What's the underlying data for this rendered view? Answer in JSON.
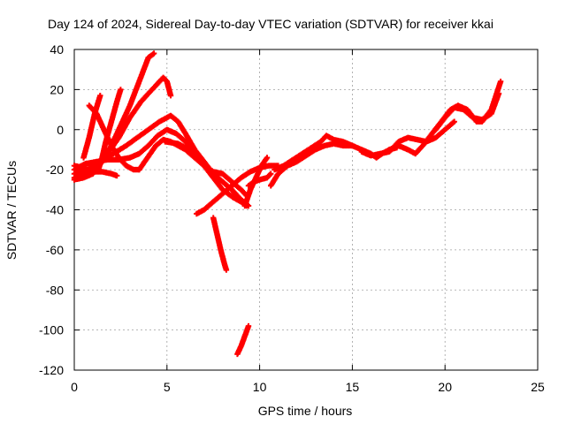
{
  "chart_data": {
    "type": "scatter",
    "title": "Day 124 of 2024, Sidereal Day-to-day VTEC variation (SDTVAR) for receiver kkai",
    "xlabel": "GPS time / hours",
    "ylabel": "SDTVAR / TECUs",
    "xlim": [
      0,
      25
    ],
    "ylim": [
      -120,
      40
    ],
    "xticks": [
      0,
      5,
      10,
      15,
      20,
      25
    ],
    "yticks": [
      -120,
      -100,
      -80,
      -60,
      -40,
      -20,
      0,
      20,
      40
    ],
    "grid": true,
    "marker": "plus",
    "color": "#ff0000",
    "series": [
      {
        "points": [
          [
            0.0,
            -25
          ],
          [
            0.5,
            -24
          ],
          [
            1.0,
            -22
          ],
          [
            1.5,
            -16
          ],
          [
            2.0,
            -8
          ],
          [
            2.5,
            2
          ],
          [
            3.0,
            12
          ],
          [
            3.5,
            24
          ],
          [
            4.0,
            36
          ],
          [
            4.3,
            38
          ]
        ]
      },
      {
        "points": [
          [
            0.0,
            -24
          ],
          [
            0.6,
            -22
          ],
          [
            1.2,
            -18
          ],
          [
            1.8,
            -12
          ],
          [
            2.4,
            -4
          ],
          [
            3.0,
            6
          ],
          [
            3.6,
            14
          ],
          [
            4.2,
            20
          ],
          [
            4.8,
            26
          ],
          [
            5.0,
            24
          ],
          [
            5.2,
            17
          ]
        ]
      },
      {
        "points": [
          [
            0.0,
            -22
          ],
          [
            0.7,
            -20
          ],
          [
            1.4,
            -16
          ],
          [
            2.1,
            -12
          ],
          [
            2.8,
            -8
          ],
          [
            3.4,
            -4
          ],
          [
            4.0,
            0
          ],
          [
            4.6,
            4
          ],
          [
            5.2,
            7
          ],
          [
            5.6,
            4
          ],
          [
            6.0,
            -2
          ],
          [
            6.5,
            -10
          ],
          [
            7.0,
            -16
          ],
          [
            7.5,
            -22
          ],
          [
            8.0,
            -26
          ],
          [
            8.5,
            -30
          ],
          [
            9.0,
            -36
          ],
          [
            9.3,
            -38
          ]
        ]
      },
      {
        "points": [
          [
            0.0,
            -20
          ],
          [
            0.6,
            -17
          ],
          [
            1.2,
            -16
          ],
          [
            1.8,
            -15
          ],
          [
            2.4,
            -15
          ],
          [
            3.0,
            -14
          ],
          [
            3.5,
            -12
          ],
          [
            4.0,
            -8
          ],
          [
            4.5,
            -3
          ],
          [
            5.0,
            0
          ],
          [
            5.5,
            -2
          ],
          [
            6.0,
            -6
          ],
          [
            6.5,
            -12
          ],
          [
            7.0,
            -18
          ],
          [
            7.5,
            -24
          ],
          [
            8.0,
            -30
          ],
          [
            8.6,
            -34
          ],
          [
            9.0,
            -36
          ]
        ]
      },
      {
        "points": [
          [
            0.0,
            -18
          ],
          [
            0.5,
            -19
          ],
          [
            1.0,
            -21
          ],
          [
            1.5,
            -21
          ],
          [
            2.0,
            -22
          ],
          [
            2.3,
            -23
          ]
        ]
      },
      {
        "points": [
          [
            0.5,
            -14
          ],
          [
            0.8,
            -4
          ],
          [
            1.1,
            8
          ],
          [
            1.4,
            17
          ]
        ]
      },
      {
        "points": [
          [
            0.8,
            12
          ],
          [
            1.2,
            8
          ],
          [
            1.6,
            0
          ],
          [
            2.0,
            -8
          ],
          [
            2.4,
            -14
          ],
          [
            2.8,
            -18
          ],
          [
            3.2,
            -20
          ],
          [
            3.5,
            -20
          ]
        ]
      },
      {
        "points": [
          [
            1.3,
            -20
          ],
          [
            1.5,
            -14
          ],
          [
            1.7,
            -6
          ],
          [
            2.0,
            4
          ],
          [
            2.3,
            14
          ],
          [
            2.5,
            20
          ]
        ]
      },
      {
        "points": [
          [
            3.5,
            -20
          ],
          [
            3.8,
            -16
          ],
          [
            4.1,
            -12
          ],
          [
            4.4,
            -8
          ],
          [
            4.8,
            -5
          ],
          [
            5.2,
            -6
          ],
          [
            5.6,
            -8
          ],
          [
            6.0,
            -10
          ],
          [
            6.5,
            -14
          ],
          [
            7.0,
            -18
          ],
          [
            7.5,
            -21
          ],
          [
            8.0,
            -22
          ],
          [
            8.5,
            -26
          ],
          [
            9.0,
            -30
          ],
          [
            9.3,
            -33
          ]
        ]
      },
      {
        "points": [
          [
            4.9,
            -6
          ],
          [
            5.6,
            -7
          ],
          [
            6.2,
            -10
          ],
          [
            6.8,
            -16
          ],
          [
            7.4,
            -22
          ],
          [
            8.0,
            -26
          ],
          [
            8.5,
            -30
          ],
          [
            9.0,
            -35
          ],
          [
            9.4,
            -38
          ]
        ]
      },
      {
        "points": [
          [
            6.6,
            -42
          ],
          [
            7.0,
            -40
          ],
          [
            7.5,
            -36
          ],
          [
            8.0,
            -32
          ],
          [
            8.5,
            -28
          ],
          [
            9.0,
            -24
          ],
          [
            9.5,
            -21
          ],
          [
            10.0,
            -19
          ],
          [
            10.5,
            -18
          ],
          [
            11.0,
            -18
          ]
        ]
      },
      {
        "points": [
          [
            7.5,
            -44
          ],
          [
            7.7,
            -52
          ],
          [
            7.9,
            -60
          ],
          [
            8.1,
            -67
          ],
          [
            8.2,
            -70
          ]
        ]
      },
      {
        "points": [
          [
            8.8,
            -112
          ],
          [
            9.0,
            -108
          ],
          [
            9.2,
            -103
          ],
          [
            9.4,
            -98
          ]
        ]
      },
      {
        "points": [
          [
            9.2,
            -38
          ],
          [
            9.5,
            -30
          ],
          [
            9.8,
            -24
          ],
          [
            10.1,
            -18
          ],
          [
            10.4,
            -14
          ]
        ]
      },
      {
        "points": [
          [
            9.4,
            -28
          ],
          [
            9.7,
            -26
          ],
          [
            10.0,
            -25
          ],
          [
            10.4,
            -24
          ],
          [
            10.6,
            -22
          ]
        ]
      },
      {
        "points": [
          [
            10.6,
            -28
          ],
          [
            11.0,
            -22
          ],
          [
            11.5,
            -18
          ],
          [
            12.0,
            -16
          ],
          [
            12.5,
            -13
          ],
          [
            13.0,
            -10
          ],
          [
            13.5,
            -8
          ],
          [
            14.0,
            -7
          ],
          [
            14.5,
            -8
          ],
          [
            15.0,
            -8
          ]
        ]
      },
      {
        "points": [
          [
            10.8,
            -20
          ],
          [
            11.3,
            -18
          ],
          [
            11.8,
            -15
          ],
          [
            12.3,
            -12
          ],
          [
            12.8,
            -9
          ],
          [
            13.3,
            -6
          ],
          [
            13.6,
            -3
          ],
          [
            14.0,
            -5
          ],
          [
            14.5,
            -6
          ],
          [
            15.0,
            -8
          ]
        ]
      },
      {
        "points": [
          [
            15.0,
            -8
          ],
          [
            15.5,
            -10
          ],
          [
            16.0,
            -12
          ],
          [
            16.3,
            -14
          ],
          [
            16.6,
            -12
          ],
          [
            17.0,
            -10
          ],
          [
            17.4,
            -9
          ]
        ]
      },
      {
        "points": [
          [
            15.5,
            -11
          ],
          [
            16.0,
            -13
          ],
          [
            16.5,
            -12
          ],
          [
            17.0,
            -11
          ],
          [
            17.5,
            -6
          ],
          [
            18.0,
            -4
          ],
          [
            18.5,
            -5
          ],
          [
            19.0,
            -6
          ],
          [
            19.5,
            -4
          ],
          [
            20.0,
            0
          ],
          [
            20.5,
            4
          ]
        ]
      },
      {
        "points": [
          [
            17.0,
            -10
          ],
          [
            17.5,
            -8
          ],
          [
            18.0,
            -10
          ],
          [
            18.4,
            -12
          ],
          [
            18.8,
            -8
          ],
          [
            19.3,
            -2
          ],
          [
            19.8,
            4
          ],
          [
            20.3,
            10
          ],
          [
            20.7,
            12
          ],
          [
            21.2,
            10
          ],
          [
            21.7,
            4
          ],
          [
            22.0,
            4
          ],
          [
            22.5,
            10
          ],
          [
            23.0,
            24
          ]
        ]
      },
      {
        "points": [
          [
            19.5,
            0
          ],
          [
            20.0,
            6
          ],
          [
            20.5,
            11
          ],
          [
            21.0,
            10
          ],
          [
            21.5,
            6
          ],
          [
            22.0,
            5
          ],
          [
            22.5,
            8
          ],
          [
            22.9,
            18
          ]
        ]
      }
    ]
  }
}
